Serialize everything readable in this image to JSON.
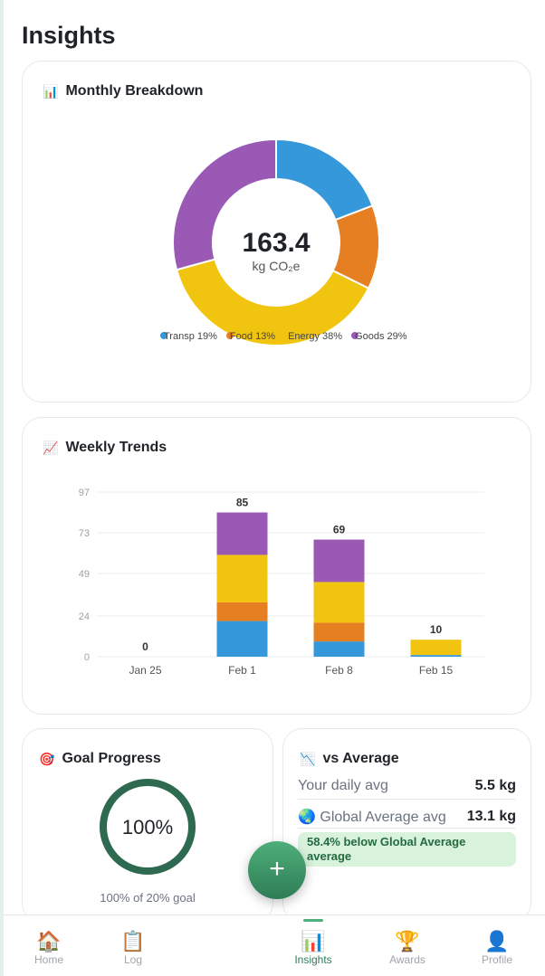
{
  "page": {
    "title": "Insights"
  },
  "breakdown": {
    "title": "Monthly Breakdown",
    "icon": "bar-chart-icon",
    "total": "163.4",
    "unit": "kg CO₂e",
    "legend": [
      {
        "label": "Transp",
        "pct": "19%",
        "value": 19,
        "color": "#3498db"
      },
      {
        "label": "Food",
        "pct": "13%",
        "value": 13,
        "color": "#e67e22"
      },
      {
        "label": "Energy",
        "pct": "38%",
        "value": 38,
        "color": "#f1c40f"
      },
      {
        "label": "Goods",
        "pct": "29%",
        "value": 29,
        "color": "#9b59b6"
      }
    ]
  },
  "chart_data": {
    "type": "bar",
    "stacked": true,
    "title": "Weekly Trends",
    "categories": [
      "Jan 25",
      "Feb 1",
      "Feb 8",
      "Feb 15"
    ],
    "yticks": [
      0,
      24,
      49,
      73,
      97
    ],
    "ylim": [
      0,
      97
    ],
    "totals": [
      0,
      85,
      69,
      10
    ],
    "series": [
      {
        "name": "Transport",
        "color": "#3498db",
        "values": [
          0,
          21,
          9,
          1
        ]
      },
      {
        "name": "Food",
        "color": "#e67e22",
        "values": [
          0,
          11,
          11,
          0
        ]
      },
      {
        "name": "Energy",
        "color": "#f1c40f",
        "values": [
          0,
          28,
          24,
          9
        ]
      },
      {
        "name": "Goods",
        "color": "#9b59b6",
        "values": [
          0,
          25,
          25,
          0
        ]
      }
    ]
  },
  "trends": {
    "title": "Weekly Trends",
    "icon": "line-chart-icon"
  },
  "goal": {
    "title": "Goal Progress",
    "icon": "target-icon",
    "value": "100%",
    "progress": 1.0,
    "caption": "100% of 20% goal"
  },
  "average": {
    "title": "vs Average",
    "icon": "chart-down-icon",
    "your_label": "Your daily avg",
    "your_value": "5.5 kg",
    "global_label": "Global Average avg",
    "global_value": "13.1 kg",
    "badge": "58.4% below Global Average average"
  },
  "fab": {
    "label": "+"
  },
  "nav": [
    {
      "label": "Home",
      "icon": "🏠"
    },
    {
      "label": "Log",
      "icon": "📋"
    },
    {
      "label": "Insights",
      "icon": "📊",
      "active": true
    },
    {
      "label": "Awards",
      "icon": "🏆"
    },
    {
      "label": "Profile",
      "icon": "👤"
    }
  ],
  "colors": {
    "accent": "#2e7d55",
    "ring": "#2d6a4f"
  }
}
